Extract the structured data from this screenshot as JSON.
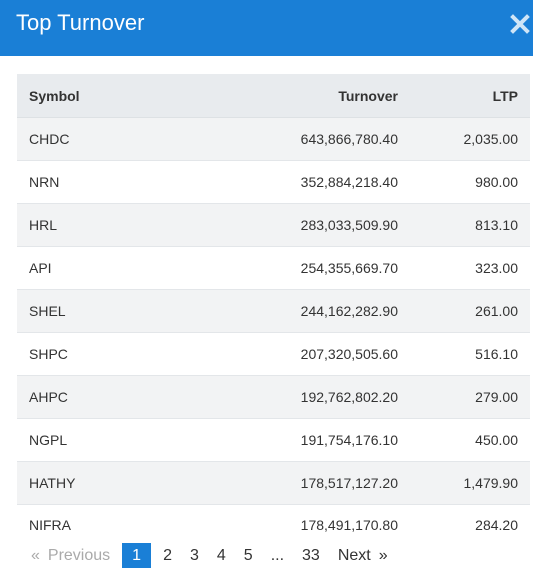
{
  "modal": {
    "title": "Top Turnover",
    "close_icon": "close-icon"
  },
  "table": {
    "headers": {
      "symbol": "Symbol",
      "turnover": "Turnover",
      "ltp": "LTP"
    },
    "rows": [
      {
        "symbol": "CHDC",
        "turnover": "643,866,780.40",
        "ltp": "2,035.00"
      },
      {
        "symbol": "NRN",
        "turnover": "352,884,218.40",
        "ltp": "980.00"
      },
      {
        "symbol": "HRL",
        "turnover": "283,033,509.90",
        "ltp": "813.10"
      },
      {
        "symbol": "API",
        "turnover": "254,355,669.70",
        "ltp": "323.00"
      },
      {
        "symbol": "SHEL",
        "turnover": "244,162,282.90",
        "ltp": "261.00"
      },
      {
        "symbol": "SHPC",
        "turnover": "207,320,505.60",
        "ltp": "516.10"
      },
      {
        "symbol": "AHPC",
        "turnover": "192,762,802.20",
        "ltp": "279.00"
      },
      {
        "symbol": "NGPL",
        "turnover": "191,754,176.10",
        "ltp": "450.00"
      },
      {
        "symbol": "HATHY",
        "turnover": "178,517,127.20",
        "ltp": "1,479.90"
      },
      {
        "symbol": "NIFRA",
        "turnover": "178,491,170.80",
        "ltp": "284.20"
      }
    ]
  },
  "pagination": {
    "prev_arrow": "«",
    "prev_label": "Previous",
    "pages": [
      "1",
      "2",
      "3",
      "4",
      "5"
    ],
    "ellipsis": "...",
    "last_page": "33",
    "next_label": "Next",
    "next_arrow": "»",
    "current_page": "1"
  },
  "colors": {
    "header_bg": "#1a7fd6",
    "active_page_bg": "#1a7fd6",
    "table_header_bg": "#e8ebee",
    "row_stripe_bg": "#f2f3f4"
  }
}
